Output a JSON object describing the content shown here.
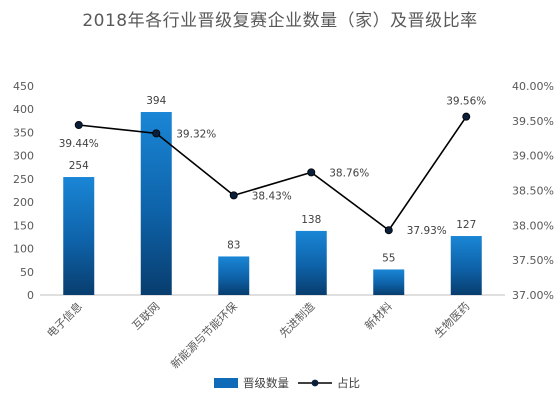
{
  "chart_data": {
    "type": "bar",
    "title": "2018年各行业晋级复赛企业数量（家）及晋级比率",
    "categories": [
      "电子信息",
      "互联网",
      "新能源与节能环保",
      "先进制造",
      "新材料",
      "生物医药"
    ],
    "series": [
      {
        "name": "晋级数量",
        "type": "bar",
        "axis": "left",
        "values": [
          254,
          394,
          83,
          138,
          55,
          127
        ],
        "labels": [
          "254",
          "394",
          "83",
          "138",
          "55",
          "127"
        ],
        "color": "#0d6fbf"
      },
      {
        "name": "占比",
        "type": "line",
        "axis": "right",
        "values": [
          39.44,
          39.32,
          38.43,
          38.76,
          37.93,
          39.56
        ],
        "labels": [
          "39.44%",
          "39.32%",
          "38.43%",
          "38.76%",
          "37.93%",
          "39.56%"
        ],
        "color": "#000000"
      }
    ],
    "y_left": {
      "range": [
        0,
        450
      ],
      "ticks": [
        "0",
        "50",
        "100",
        "150",
        "200",
        "250",
        "300",
        "350",
        "400",
        "450"
      ]
    },
    "y_right": {
      "range": [
        37.0,
        40.0
      ],
      "ticks": [
        "37.00%",
        "37.50%",
        "38.00%",
        "38.50%",
        "39.00%",
        "39.50%",
        "40.00%"
      ]
    },
    "grid": false,
    "legend": "bottom"
  }
}
